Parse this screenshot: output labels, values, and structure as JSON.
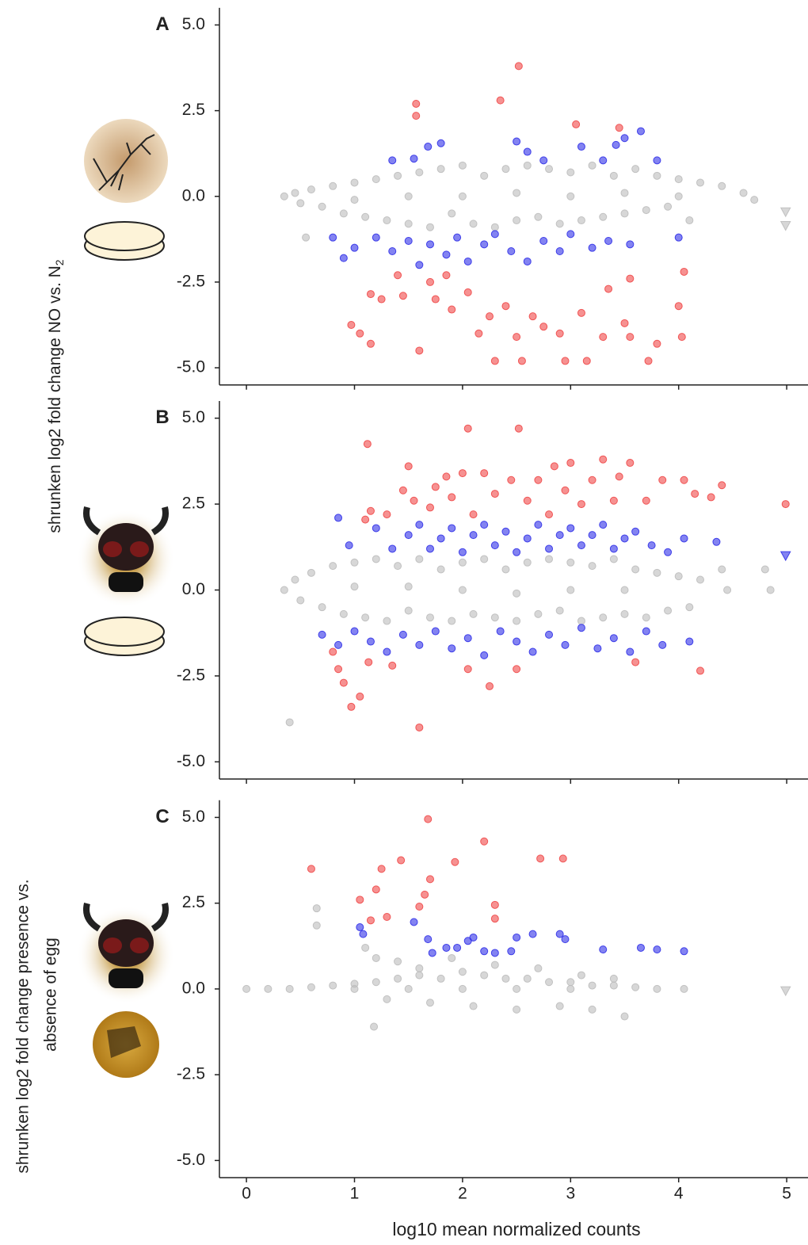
{
  "chart_data": [
    {
      "type": "scatter",
      "panel_label": "A",
      "ylabel": "shrunken log2 fold change NO vs. N",
      "ylabel_subscript": "2",
      "xlim": [
        -0.25,
        5.2
      ],
      "ylim": [
        -5.5,
        5.5
      ],
      "xticks": [
        0,
        1,
        2,
        3,
        4,
        5
      ],
      "show_xtick_labels": false,
      "yticks": [
        {
          "value": 5,
          "label": "5.0"
        },
        {
          "value": 2.5,
          "label": "2.5"
        },
        {
          "value": 0,
          "label": "0.0"
        },
        {
          "value": -2.5,
          "label": "-2.5"
        },
        {
          "value": -5,
          "label": "-5.0"
        }
      ],
      "series": [
        {
          "color": "#bdbdbd",
          "marker": "circle",
          "x": [
            0.35,
            0.45,
            0.5,
            0.6,
            0.7,
            0.8,
            0.9,
            1.0,
            1.1,
            1.2,
            1.3,
            1.4,
            1.5,
            1.6,
            1.7,
            1.8,
            1.9,
            2.0,
            2.1,
            2.2,
            2.3,
            2.4,
            2.5,
            2.6,
            2.7,
            2.8,
            2.9,
            3.0,
            3.1,
            3.2,
            3.3,
            3.4,
            3.5,
            3.6,
            3.7,
            3.8,
            3.9,
            4.0,
            4.2,
            4.4,
            4.6,
            4.7,
            4.1,
            0.55,
            2.0,
            3.0,
            1.5,
            2.5,
            3.5,
            1.0,
            4.0
          ],
          "y": [
            0.0,
            0.1,
            -0.2,
            0.2,
            -0.3,
            0.3,
            -0.5,
            0.4,
            -0.6,
            0.5,
            -0.7,
            0.6,
            -0.8,
            0.7,
            -0.9,
            0.8,
            -0.5,
            0.9,
            -0.8,
            0.6,
            -0.9,
            0.8,
            -0.7,
            0.9,
            -0.6,
            0.8,
            -0.8,
            0.7,
            -0.7,
            0.9,
            -0.6,
            0.6,
            -0.5,
            0.8,
            -0.4,
            0.6,
            -0.3,
            0.5,
            0.4,
            0.3,
            0.1,
            -0.1,
            -0.7,
            -1.2,
            0.0,
            0.0,
            0.0,
            0.1,
            0.1,
            -0.1,
            0.0
          ]
        },
        {
          "color": "#bdbdbd",
          "marker": "triangle",
          "x": [
            4.99,
            4.99
          ],
          "y": [
            -0.45,
            -0.85
          ]
        },
        {
          "color": "#3030e8",
          "marker": "circle",
          "x": [
            1.35,
            1.55,
            1.68,
            1.8,
            2.5,
            2.6,
            2.75,
            3.1,
            3.3,
            3.42,
            3.5,
            3.65,
            3.8,
            0.8,
            0.9,
            1.0,
            1.2,
            1.35,
            1.5,
            1.6,
            1.7,
            1.85,
            1.95,
            2.05,
            2.2,
            2.3,
            2.45,
            2.6,
            2.75,
            2.9,
            3.0,
            3.2,
            3.35,
            3.55,
            4.0
          ],
          "y": [
            1.05,
            1.1,
            1.45,
            1.55,
            1.6,
            1.3,
            1.05,
            1.45,
            1.05,
            1.5,
            1.7,
            1.9,
            1.05,
            -1.2,
            -1.8,
            -1.5,
            -1.2,
            -1.6,
            -1.3,
            -2.0,
            -1.4,
            -1.7,
            -1.2,
            -1.9,
            -1.4,
            -1.1,
            -1.6,
            -1.9,
            -1.3,
            -1.6,
            -1.1,
            -1.5,
            -1.3,
            -1.4,
            -1.2
          ]
        },
        {
          "color": "#f04848",
          "marker": "circle",
          "x": [
            1.57,
            1.57,
            2.35,
            2.52,
            3.05,
            3.45,
            0.97,
            1.05,
            1.15,
            1.15,
            1.25,
            1.4,
            1.45,
            1.6,
            1.7,
            1.75,
            1.85,
            1.9,
            2.05,
            2.15,
            2.25,
            2.3,
            2.4,
            2.5,
            2.55,
            2.65,
            2.75,
            2.9,
            2.95,
            3.1,
            3.15,
            3.3,
            3.35,
            3.5,
            3.55,
            3.72,
            3.8,
            4.03,
            4.0,
            4.05,
            3.55
          ],
          "y": [
            2.7,
            2.35,
            2.8,
            3.8,
            2.1,
            2.0,
            -3.75,
            -4.0,
            -4.3,
            -2.85,
            -3.0,
            -2.3,
            -2.9,
            -4.5,
            -2.5,
            -3.0,
            -2.3,
            -3.3,
            -2.8,
            -4.0,
            -3.5,
            -4.8,
            -3.2,
            -4.1,
            -4.8,
            -3.5,
            -3.8,
            -4.0,
            -4.8,
            -3.4,
            -4.8,
            -4.1,
            -2.7,
            -3.7,
            -4.1,
            -4.8,
            -4.3,
            -4.1,
            -3.2,
            -2.2,
            -2.4
          ]
        }
      ]
    },
    {
      "type": "scatter",
      "panel_label": "B",
      "xlim": [
        -0.25,
        5.2
      ],
      "ylim": [
        -5.5,
        5.5
      ],
      "xticks": [
        0,
        1,
        2,
        3,
        4,
        5
      ],
      "show_xtick_labels": false,
      "yticks": [
        {
          "value": 5,
          "label": "5.0"
        },
        {
          "value": 2.5,
          "label": "2.5"
        },
        {
          "value": 0,
          "label": "0.0"
        },
        {
          "value": -2.5,
          "label": "-2.5"
        },
        {
          "value": -5,
          "label": "-5.0"
        }
      ],
      "series": [
        {
          "color": "#bdbdbd",
          "marker": "circle",
          "x": [
            0.35,
            0.45,
            0.5,
            0.6,
            0.7,
            0.8,
            0.9,
            1.0,
            1.1,
            1.2,
            1.3,
            1.4,
            1.5,
            1.6,
            1.7,
            1.8,
            1.9,
            2.0,
            2.1,
            2.2,
            2.3,
            2.4,
            2.5,
            2.6,
            2.7,
            2.8,
            2.9,
            3.0,
            3.1,
            3.2,
            3.3,
            3.4,
            3.5,
            3.6,
            3.7,
            3.8,
            3.9,
            4.0,
            4.1,
            4.2,
            0.4,
            4.8,
            4.85,
            4.4,
            4.45,
            2.0,
            3.0,
            1.5,
            2.5,
            3.5,
            1.0
          ],
          "y": [
            0.0,
            0.3,
            -0.3,
            0.5,
            -0.5,
            0.7,
            -0.7,
            0.8,
            -0.8,
            0.9,
            -0.9,
            0.7,
            -0.6,
            0.9,
            -0.8,
            0.6,
            -0.9,
            0.8,
            -0.7,
            0.9,
            -0.8,
            0.6,
            -0.9,
            0.8,
            -0.7,
            0.9,
            -0.6,
            0.8,
            -0.9,
            0.7,
            -0.8,
            0.9,
            -0.7,
            0.6,
            -0.8,
            0.5,
            -0.6,
            0.4,
            -0.5,
            0.3,
            -3.85,
            0.6,
            0.0,
            0.6,
            0.0,
            0.0,
            0.0,
            0.1,
            -0.1,
            0.0,
            0.1
          ]
        },
        {
          "color": "#3030e8",
          "marker": "triangle",
          "x": [
            4.99
          ],
          "y": [
            1.0
          ]
        },
        {
          "color": "#3030e8",
          "marker": "circle",
          "x": [
            0.85,
            0.95,
            1.2,
            1.35,
            1.5,
            1.6,
            1.7,
            1.8,
            1.9,
            2.0,
            2.1,
            2.2,
            2.3,
            2.4,
            2.5,
            2.6,
            2.7,
            2.8,
            2.9,
            3.0,
            3.1,
            3.2,
            3.3,
            3.4,
            3.5,
            3.6,
            3.75,
            3.9,
            4.05,
            4.35,
            0.7,
            0.85,
            1.0,
            1.15,
            1.3,
            1.45,
            1.6,
            1.75,
            1.9,
            2.05,
            2.2,
            2.35,
            2.5,
            2.65,
            2.8,
            2.95,
            3.1,
            3.25,
            3.4,
            3.55,
            3.7,
            3.85,
            4.1
          ],
          "y": [
            2.1,
            1.3,
            1.8,
            1.2,
            1.6,
            1.9,
            1.2,
            1.5,
            1.8,
            1.1,
            1.6,
            1.9,
            1.3,
            1.7,
            1.1,
            1.5,
            1.9,
            1.2,
            1.6,
            1.8,
            1.3,
            1.6,
            1.9,
            1.2,
            1.5,
            1.7,
            1.3,
            1.1,
            1.5,
            1.4,
            -1.3,
            -1.6,
            -1.2,
            -1.5,
            -1.8,
            -1.3,
            -1.6,
            -1.2,
            -1.7,
            -1.4,
            -1.9,
            -1.2,
            -1.5,
            -1.8,
            -1.3,
            -1.6,
            -1.1,
            -1.7,
            -1.4,
            -1.8,
            -1.2,
            -1.6,
            -1.5
          ]
        },
        {
          "color": "#f04848",
          "marker": "circle",
          "x": [
            1.1,
            1.15,
            1.12,
            1.3,
            1.45,
            1.5,
            1.55,
            1.7,
            1.75,
            1.85,
            1.9,
            2.0,
            2.05,
            2.1,
            2.2,
            2.3,
            2.45,
            2.52,
            2.6,
            2.7,
            2.8,
            2.85,
            2.95,
            3.0,
            3.1,
            3.2,
            3.3,
            3.4,
            3.45,
            3.55,
            3.7,
            3.85,
            4.05,
            4.15,
            4.4,
            4.3,
            4.99,
            0.85,
            0.9,
            0.97,
            1.05,
            1.13,
            1.35,
            1.6,
            2.05,
            2.25,
            2.5,
            3.6,
            4.2,
            0.8
          ],
          "y": [
            2.05,
            2.3,
            4.25,
            2.2,
            2.9,
            3.6,
            2.6,
            2.4,
            3.0,
            3.3,
            2.7,
            3.4,
            4.7,
            2.2,
            3.4,
            2.8,
            3.2,
            4.7,
            2.6,
            3.2,
            2.2,
            3.6,
            2.9,
            3.7,
            2.5,
            3.2,
            3.8,
            2.6,
            3.3,
            3.7,
            2.6,
            3.2,
            3.2,
            2.8,
            3.05,
            2.7,
            2.5,
            -2.3,
            -2.7,
            -3.4,
            -3.1,
            -2.1,
            -2.2,
            -4.0,
            -2.3,
            -2.8,
            -2.3,
            -2.1,
            -2.35,
            -1.8
          ]
        }
      ]
    },
    {
      "type": "scatter",
      "panel_label": "C",
      "ylabel": [
        "shrunken log2 fold change presence vs.",
        "absence of egg"
      ],
      "xlabel": "log10 mean normalized counts",
      "xlim": [
        -0.25,
        5.2
      ],
      "ylim": [
        -5.5,
        5.5
      ],
      "xticks": [
        0,
        1,
        2,
        3,
        4,
        5
      ],
      "show_xtick_labels": true,
      "yticks": [
        {
          "value": 5,
          "label": "5.0"
        },
        {
          "value": 2.5,
          "label": "2.5"
        },
        {
          "value": 0,
          "label": "0.0"
        },
        {
          "value": -2.5,
          "label": "-2.5"
        },
        {
          "value": -5,
          "label": "-5.0"
        }
      ],
      "series": [
        {
          "color": "#bdbdbd",
          "marker": "circle",
          "x": [
            0,
            0.2,
            0.4,
            0.6,
            0.8,
            1.0,
            1.2,
            1.4,
            1.6,
            1.8,
            2.0,
            2.2,
            2.4,
            2.6,
            2.8,
            3.0,
            3.2,
            3.4,
            3.6,
            3.8,
            4.05,
            1.3,
            1.7,
            2.1,
            2.5,
            2.9,
            3.2,
            3.5,
            1.18,
            0.65,
            0.65,
            1.1,
            1.2,
            1.4,
            1.6,
            1.9,
            2.3,
            2.7,
            3.1,
            3.4,
            1.0,
            2.0,
            3.0,
            1.5,
            2.5
          ],
          "y": [
            0,
            0,
            0,
            0.05,
            0.1,
            0.15,
            0.2,
            0.3,
            0.4,
            0.3,
            0.5,
            0.4,
            0.3,
            0.3,
            0.2,
            0.2,
            0.1,
            0.1,
            0.05,
            0,
            0,
            -0.3,
            -0.4,
            -0.5,
            -0.6,
            -0.5,
            -0.6,
            -0.8,
            -1.1,
            1.85,
            2.35,
            1.2,
            0.9,
            0.8,
            0.6,
            0.9,
            0.7,
            0.6,
            0.4,
            0.3,
            0,
            0,
            0,
            0,
            0
          ]
        },
        {
          "color": "#bdbdbd",
          "marker": "triangle",
          "x": [
            4.99
          ],
          "y": [
            -0.05
          ]
        },
        {
          "color": "#3030e8",
          "marker": "circle",
          "x": [
            1.05,
            1.08,
            1.55,
            1.68,
            1.72,
            1.85,
            1.95,
            2.05,
            2.1,
            2.2,
            2.3,
            2.45,
            2.5,
            2.65,
            2.9,
            2.95,
            3.3,
            3.65,
            3.8,
            4.05
          ],
          "y": [
            1.8,
            1.6,
            1.95,
            1.45,
            1.05,
            1.2,
            1.2,
            1.4,
            1.5,
            1.1,
            1.05,
            1.1,
            1.5,
            1.6,
            1.6,
            1.45,
            1.15,
            1.2,
            1.15,
            1.1
          ]
        },
        {
          "color": "#f04848",
          "marker": "circle",
          "x": [
            0.6,
            1.05,
            1.15,
            1.2,
            1.25,
            1.3,
            1.43,
            1.6,
            1.65,
            1.68,
            1.7,
            1.93,
            2.2,
            2.3,
            2.3,
            2.72,
            2.93
          ],
          "y": [
            3.5,
            2.6,
            2.0,
            2.9,
            3.5,
            2.1,
            3.75,
            2.4,
            2.75,
            4.95,
            3.2,
            3.7,
            4.3,
            2.45,
            2.05,
            3.8,
            3.8
          ]
        }
      ]
    }
  ]
}
